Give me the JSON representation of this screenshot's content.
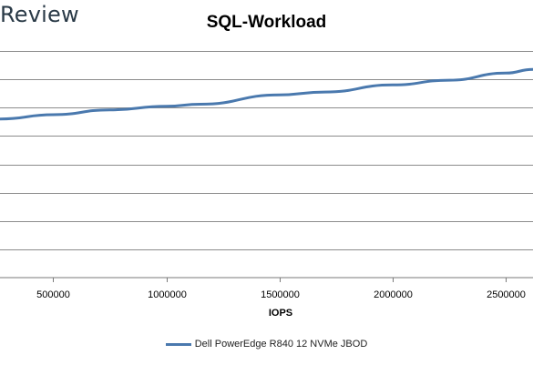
{
  "brand": {
    "text": "Review"
  },
  "chart_data": {
    "type": "line",
    "title": "SQL-Workload",
    "xlabel": "IOPS",
    "ylabel": "",
    "xlim": [
      265000,
      2620000
    ],
    "ylim": [
      0,
      8
    ],
    "x_ticks": [
      500000,
      1000000,
      1500000,
      2000000,
      2500000
    ],
    "x_tick_labels": [
      "500000",
      "1000000",
      "1500000",
      "2000000",
      "2500000"
    ],
    "y_gridlines": [
      1,
      2,
      3,
      4,
      5,
      6,
      7,
      8
    ],
    "grid": true,
    "legend": "bottom",
    "series": [
      {
        "name": "Dell PowerEdge R840 12 NVMe JBOD",
        "color": "#4a79ae",
        "x": [
          265000,
          500000,
          750000,
          1000000,
          1150000,
          1500000,
          1700000,
          2000000,
          2250000,
          2500000,
          2620000
        ],
        "y": [
          5.6,
          5.75,
          5.92,
          6.05,
          6.12,
          6.45,
          6.55,
          6.8,
          6.97,
          7.22,
          7.35
        ]
      }
    ]
  }
}
